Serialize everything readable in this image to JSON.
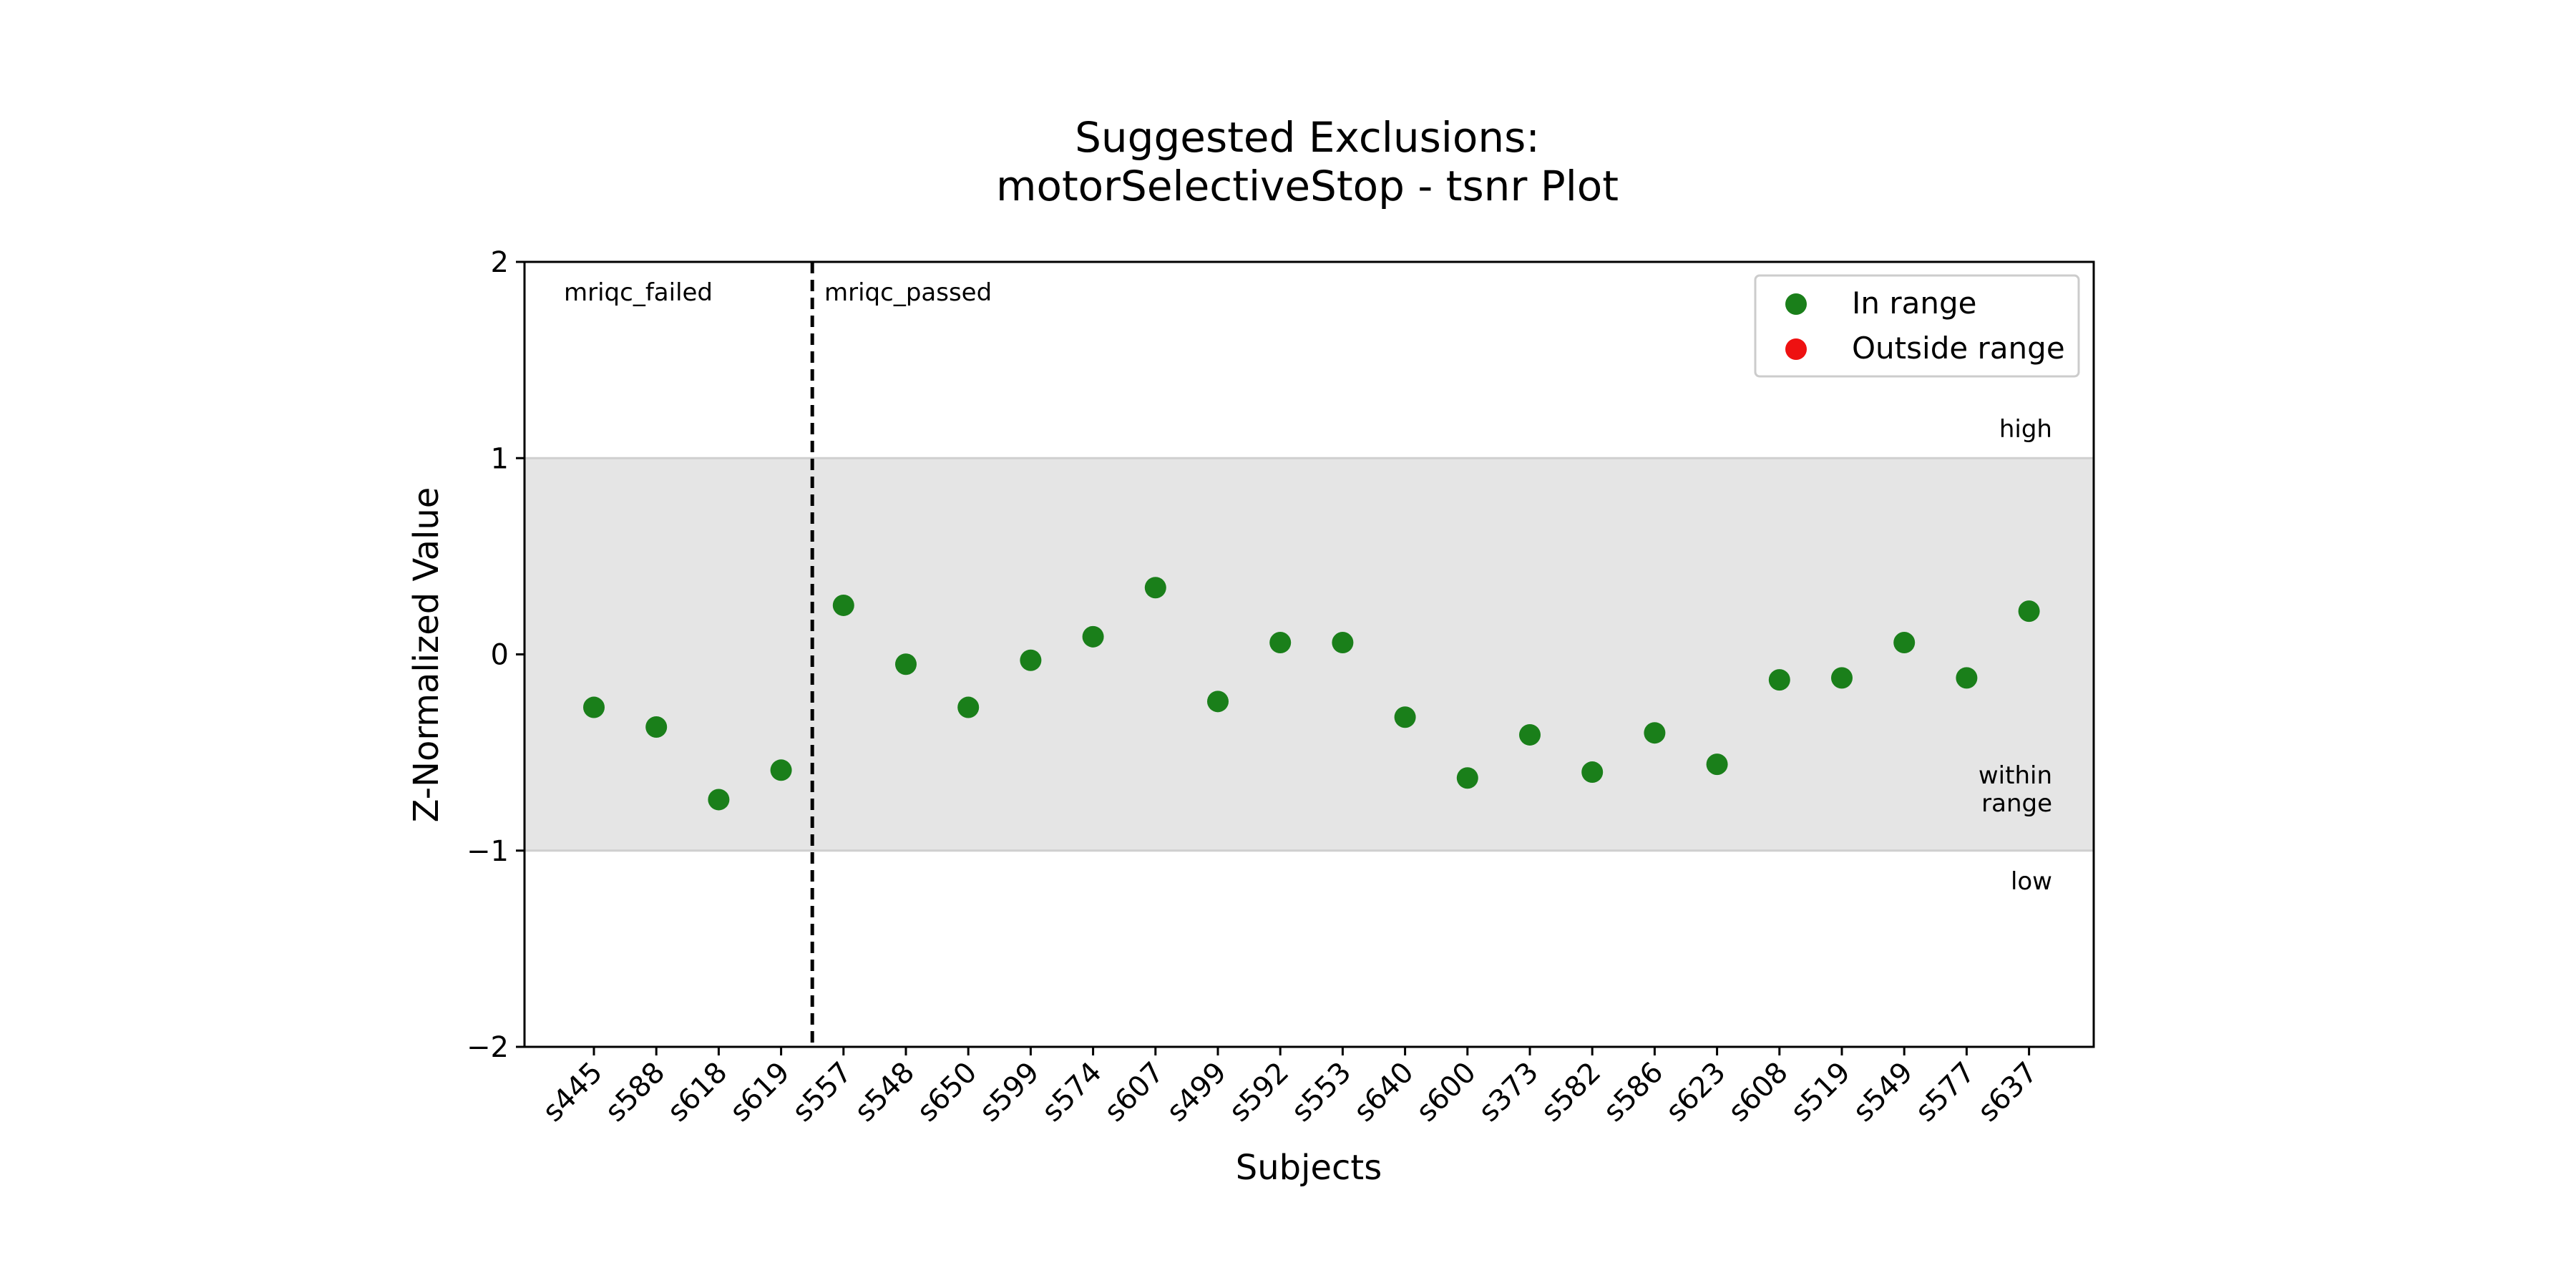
{
  "chart_data": {
    "type": "scatter",
    "title_line1": "Suggested Exclusions:",
    "title_line2": "motorSelectiveStop - tsnr Plot",
    "xlabel": "Subjects",
    "ylabel": "Z-Normalized Value",
    "ylim": [
      -2,
      2
    ],
    "yticks": [
      2,
      1,
      0,
      -1,
      -2
    ],
    "ytick_labels": [
      "2",
      "1",
      "0",
      "−1",
      "−2"
    ],
    "within_range_band": [
      -1,
      1
    ],
    "grid": false,
    "legend_placement": "top-right",
    "categories": [
      "s445",
      "s588",
      "s618",
      "s619",
      "s557",
      "s548",
      "s650",
      "s599",
      "s574",
      "s607",
      "s499",
      "s592",
      "s553",
      "s640",
      "s600",
      "s373",
      "s582",
      "s586",
      "s623",
      "s608",
      "s519",
      "s549",
      "s577",
      "s637"
    ],
    "values": [
      -0.27,
      -0.37,
      -0.74,
      -0.59,
      0.25,
      -0.05,
      -0.27,
      -0.03,
      0.09,
      0.34,
      -0.24,
      0.06,
      0.06,
      -0.32,
      -0.63,
      -0.41,
      -0.6,
      -0.4,
      -0.56,
      -0.13,
      -0.12,
      0.06,
      -0.12,
      0.22
    ],
    "separator_after_index": 3,
    "group_labels": {
      "left": "mriqc_failed",
      "right": "mriqc_passed"
    },
    "range_labels": {
      "high": "high",
      "within_line1": "within",
      "within_line2": "range",
      "low": "low"
    },
    "legend": [
      {
        "label": "In range",
        "color": "#1a7f1a"
      },
      {
        "label": "Outside range",
        "color": "#ee1111"
      }
    ],
    "colors": {
      "in_range": "#1a7f1a",
      "outside_range": "#ee1111",
      "band": "#e5e5e5",
      "band_edge": "#cfcfcf"
    }
  }
}
